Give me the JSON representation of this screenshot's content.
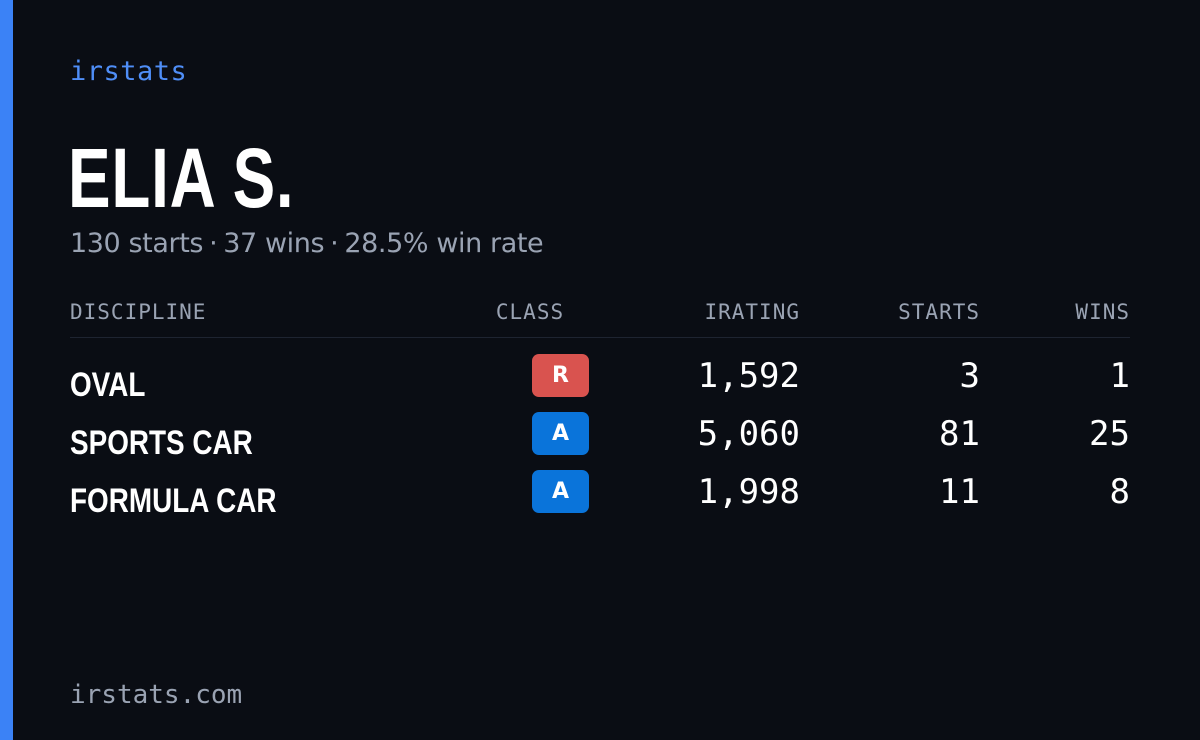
{
  "brand": "irstats",
  "driver": {
    "name": "ELIA S.",
    "starts_text": "130 starts",
    "wins_text": "37 wins",
    "win_rate_text": "28.5% win rate",
    "separator": "·"
  },
  "table": {
    "headers": {
      "discipline": "DISCIPLINE",
      "class": "CLASS",
      "irating": "IRATING",
      "starts": "STARTS",
      "wins": "WINS"
    },
    "rows": [
      {
        "discipline": "OVAL",
        "class": "R",
        "class_color": "#d9534f",
        "irating": "1,592",
        "starts": "3",
        "wins": "1"
      },
      {
        "discipline": "SPORTS CAR",
        "class": "A",
        "class_color": "#0a74da",
        "irating": "5,060",
        "starts": "81",
        "wins": "25"
      },
      {
        "discipline": "FORMULA CAR",
        "class": "A",
        "class_color": "#0a74da",
        "irating": "1,998",
        "starts": "11",
        "wins": "8"
      }
    ]
  },
  "footer": "irstats.com",
  "colors": {
    "accent": "#3b82f6",
    "background": "#0a0d14",
    "brand_text": "#4f8ef7"
  }
}
